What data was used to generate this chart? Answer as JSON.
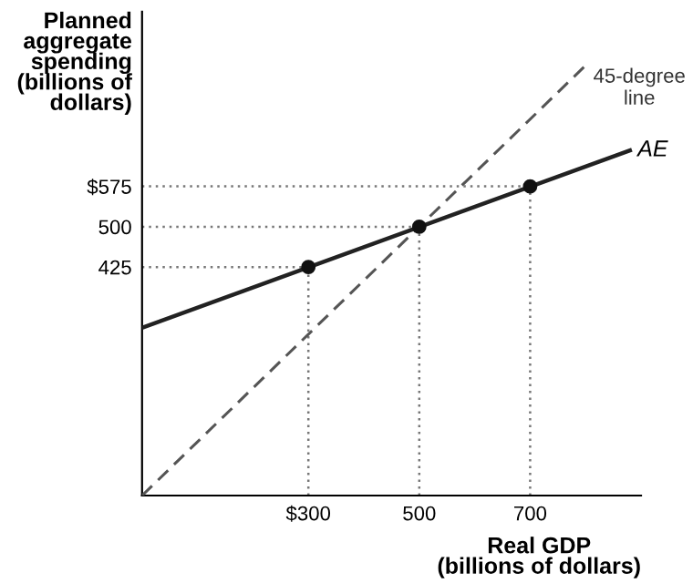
{
  "chart_data": {
    "type": "line",
    "xlabel": "Real GDP\n(billions of dollars)",
    "ylabel": "Planned\naggregate\nspending\n(billions of\ndollars)",
    "xlim": [
      0,
      900
    ],
    "ylim": [
      0,
      900
    ],
    "xticks": [
      {
        "value": 300,
        "label": "$300"
      },
      500,
      700
    ],
    "yticks": [
      425,
      500,
      {
        "value": 575,
        "label": "$575"
      }
    ],
    "grid": false,
    "legend": false,
    "series": [
      {
        "color": "#555555",
        "line_style": "dashed",
        "marker": "none",
        "x": [
          0,
          800
        ],
        "values": [
          0,
          800
        ]
      },
      {
        "color": "#222222",
        "line_style": "solid",
        "marker": "none",
        "x": [
          0,
          880
        ],
        "values": [
          312,
          642
        ]
      },
      {
        "type": "scatter",
        "color": "#111111",
        "marker": "circle",
        "x": [
          300,
          500,
          700
        ],
        "values": [
          425,
          500,
          575
        ]
      }
    ],
    "ref_lines": [
      {
        "axis": "x",
        "value": 300,
        "color": "#777777",
        "line_style": "dotted"
      },
      {
        "axis": "x",
        "value": 500,
        "color": "#777777",
        "line_style": "dotted"
      },
      {
        "axis": "x",
        "value": 700,
        "color": "#777777",
        "line_style": "dotted"
      },
      {
        "axis": "y",
        "value": 425,
        "color": "#777777",
        "line_style": "dotted"
      },
      {
        "axis": "y",
        "value": 500,
        "color": "#777777",
        "line_style": "dotted"
      },
      {
        "axis": "y",
        "value": 575,
        "color": "#777777",
        "line_style": "dotted"
      }
    ],
    "annotations": [
      {
        "text": "45-degree\nline",
        "x": 800,
        "y": 800
      },
      {
        "text": "AE",
        "x": 880,
        "y": 642
      }
    ]
  }
}
